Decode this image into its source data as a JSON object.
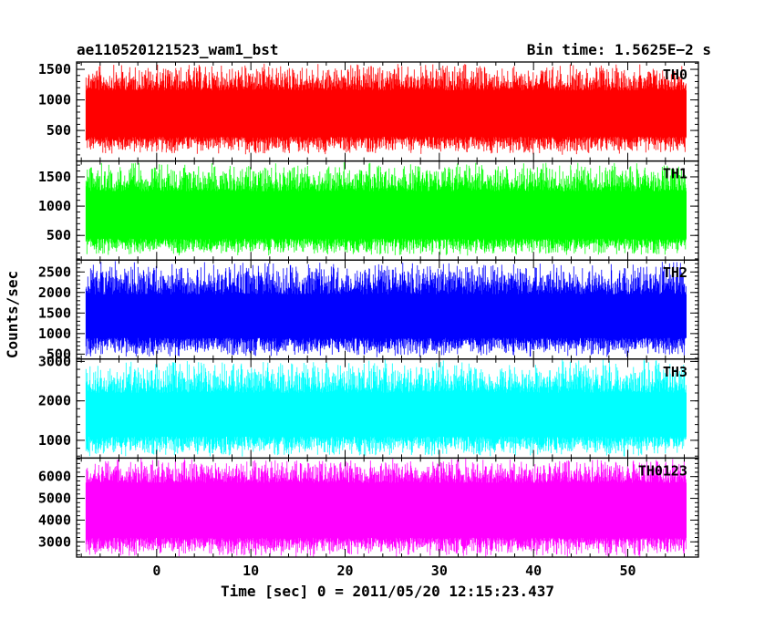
{
  "header": {
    "title": "ae110520121523_wam1_bst",
    "bin_time": "Bin time: 1.5625E−2 s"
  },
  "chart_data": {
    "type": "line",
    "xlabel": "Time [sec] 0 = 2011/05/20 12:15:23.437",
    "ylabel": "Counts/sec",
    "xlim": [
      -8.5,
      57.5
    ],
    "data_range": [
      -7.5,
      56.2
    ],
    "xticks": [
      0,
      10,
      20,
      30,
      40,
      50
    ],
    "panels": [
      {
        "name": "TH0",
        "color": "#ff0000",
        "ylim": [
          0,
          1620
        ],
        "yticks": [
          500,
          1000,
          1500
        ],
        "min": 100,
        "max": 1600,
        "low": 400,
        "high": 1150
      },
      {
        "name": "TH1",
        "color": "#00ff00",
        "ylim": [
          80,
          1770
        ],
        "yticks": [
          500,
          1000,
          1500
        ],
        "min": 150,
        "max": 1760,
        "low": 450,
        "high": 1250
      },
      {
        "name": "TH2",
        "color": "#0000ff",
        "ylim": [
          380,
          2790
        ],
        "yticks": [
          500,
          1000,
          1500,
          2000,
          2500
        ],
        "min": 420,
        "max": 2780,
        "low": 900,
        "high": 1950
      },
      {
        "name": "TH3",
        "color": "#00ffff",
        "ylim": [
          550,
          3060
        ],
        "yticks": [
          1000,
          2000,
          3000
        ],
        "min": 580,
        "max": 3060,
        "low": 1100,
        "high": 2200
      },
      {
        "name": "TH0123",
        "color": "#ff00ff",
        "ylim": [
          2300,
          6850
        ],
        "yticks": [
          3000,
          4000,
          5000,
          6000
        ],
        "min": 2300,
        "max": 6850,
        "low": 3200,
        "high": 5700
      }
    ]
  }
}
